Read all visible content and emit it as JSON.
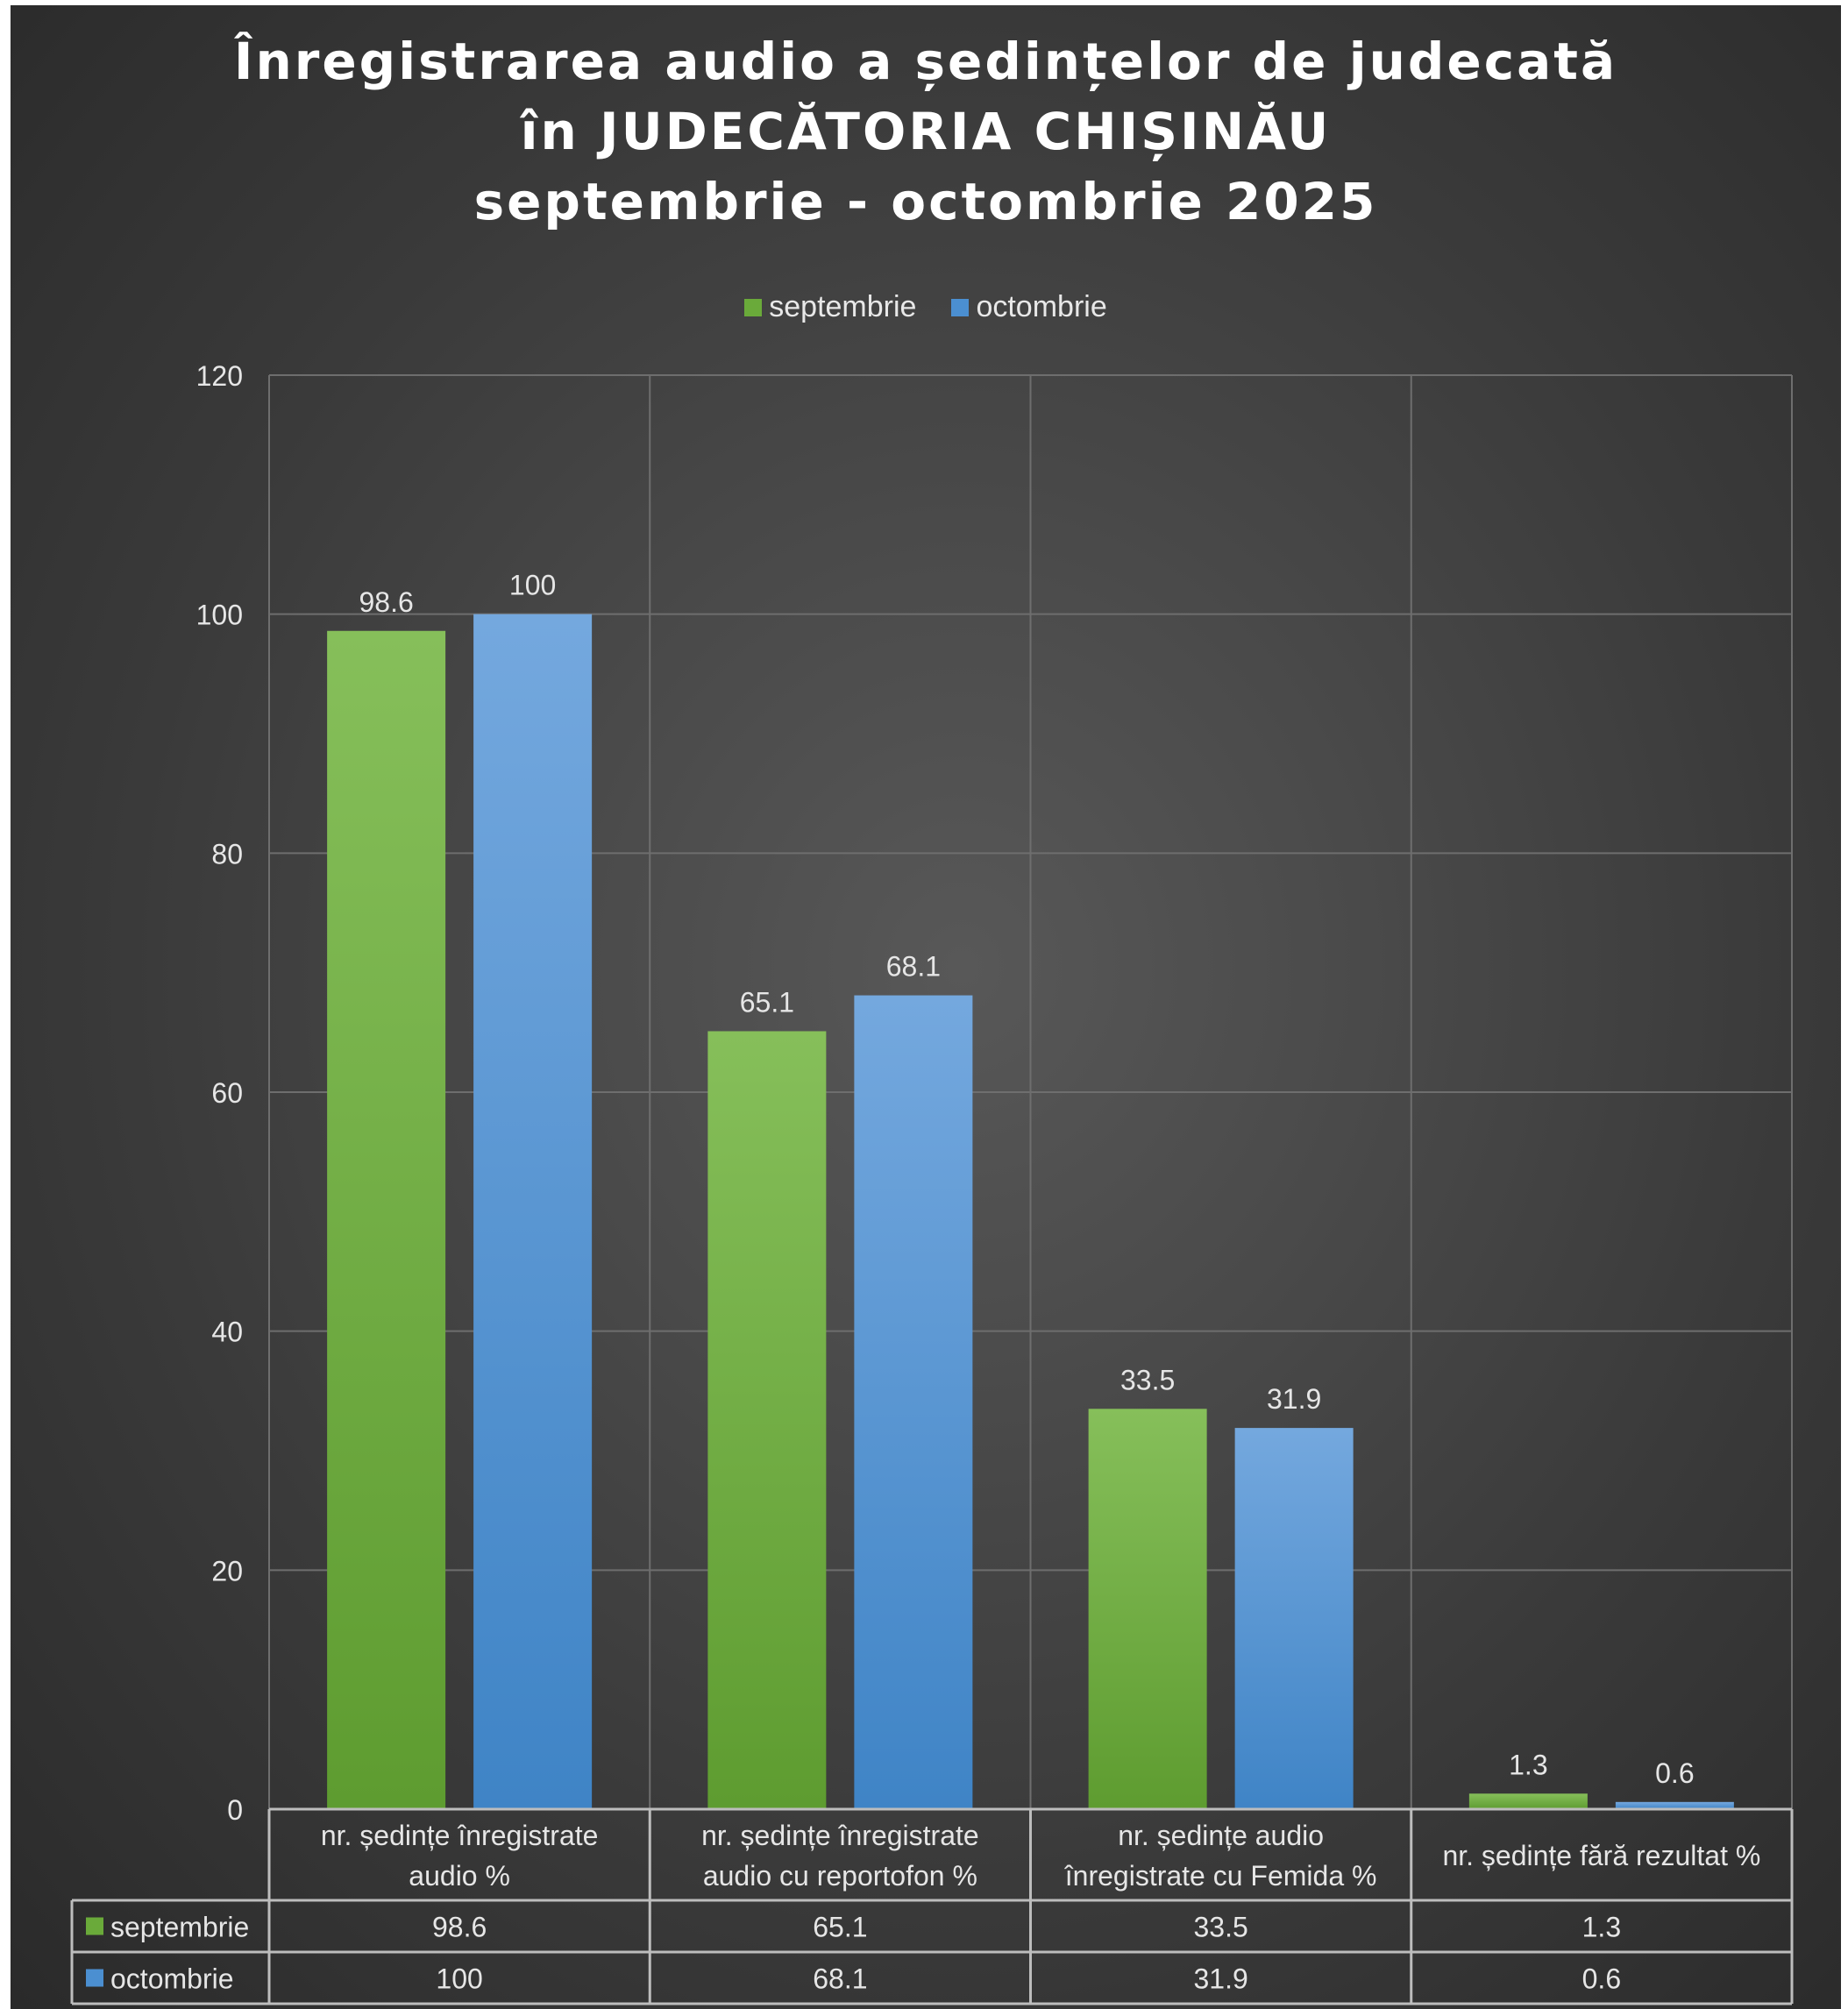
{
  "chart_data": {
    "type": "bar",
    "title": [
      "Înregistrarea audio a ședințelor de judecată",
      "în JUDECĂTORIA CHIȘINĂU",
      "septembrie - octombrie 2025"
    ],
    "categories": [
      [
        "nr. ședințe înregistrate",
        "audio %"
      ],
      [
        "nr. ședințe înregistrate",
        "audio cu reportofon %"
      ],
      [
        "nr. ședințe audio",
        "înregistrate cu Femida %"
      ],
      [
        "nr. ședințe fără rezultat %"
      ]
    ],
    "series": [
      {
        "name": "septembrie",
        "values": [
          98.6,
          65.1,
          33.5,
          1.3
        ],
        "color": "#6aaa3a"
      },
      {
        "name": "octombrie",
        "values": [
          100,
          68.1,
          31.9,
          0.6
        ],
        "color": "#4b8fd1"
      }
    ],
    "ylim": [
      0,
      120
    ],
    "yticks": [
      0,
      20,
      40,
      60,
      80,
      100,
      120
    ],
    "grid": true,
    "legend_position": "top",
    "data_table": true
  }
}
